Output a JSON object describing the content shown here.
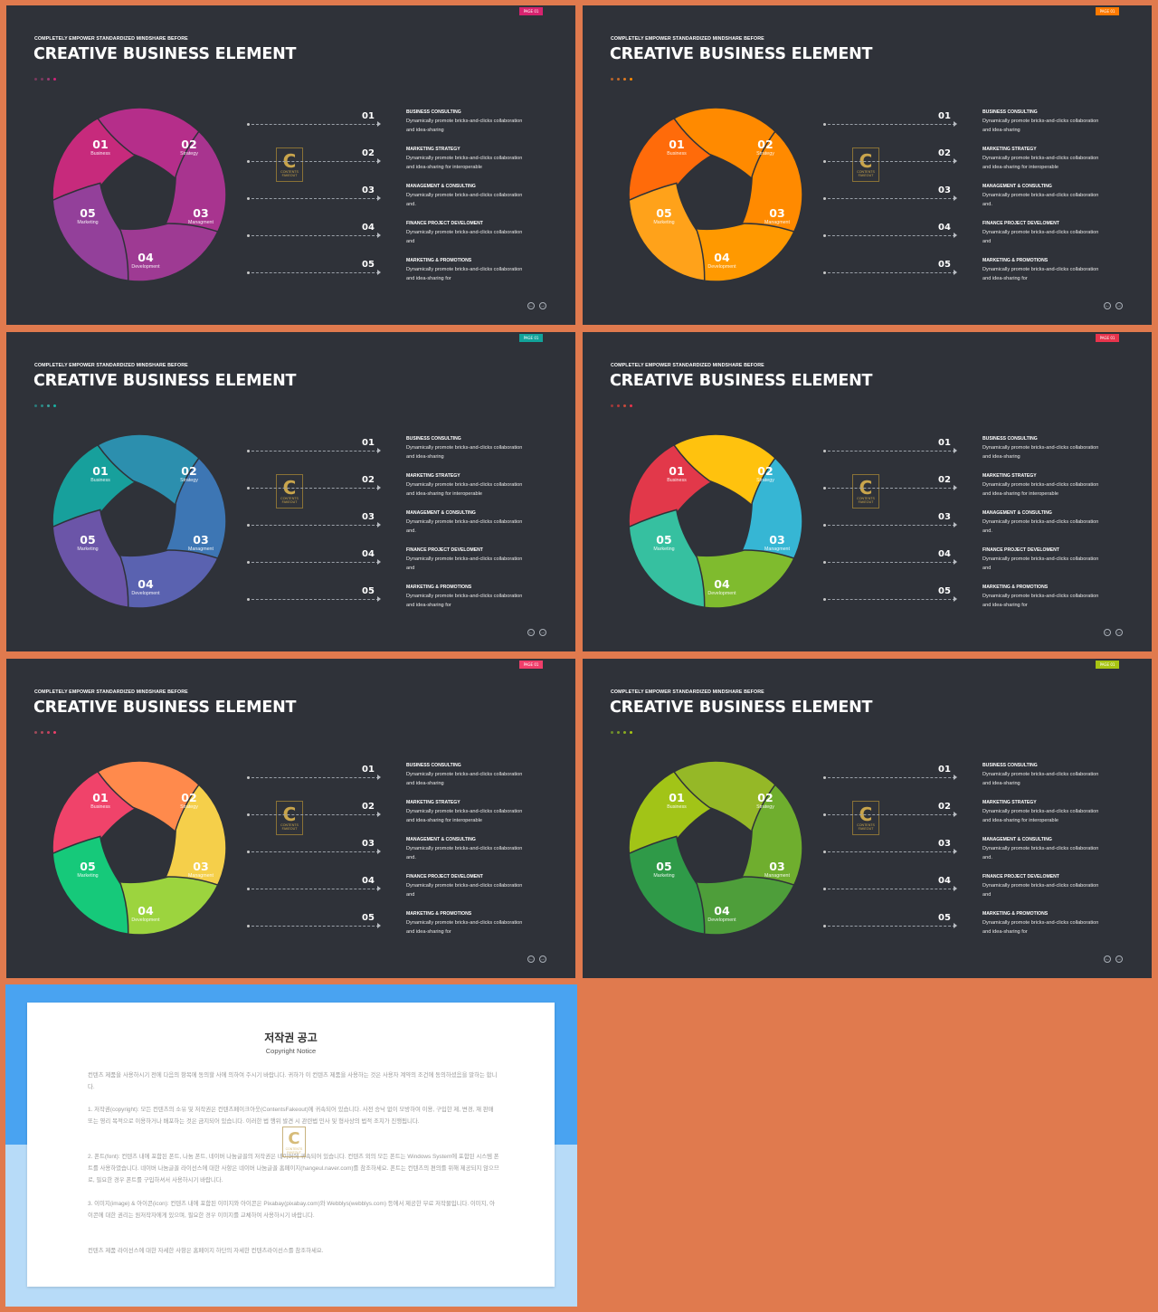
{
  "slide_common": {
    "kicker": "COMPLETELY  EMPOWER  STANDARDIZED  MINDSHARE  BEFORE",
    "title": "CREATIVE BUSINESS ELEMENT",
    "page_tag": "PAGE 01",
    "logo_letter": "C",
    "logo_text": "CONTENTS FAKEOUT",
    "nav_prev": "←",
    "nav_next": "→",
    "wheel": [
      {
        "num": "01",
        "label": "Business"
      },
      {
        "num": "02",
        "label": "Strategy"
      },
      {
        "num": "03",
        "label": "Managment"
      },
      {
        "num": "04",
        "label": "Development"
      },
      {
        "num": "05",
        "label": "Marketing"
      }
    ],
    "items": [
      {
        "num": "01",
        "title": "BUSINESS  CONSULTING",
        "line1": "Dynamically promote bricks-and-clicks collaboration",
        "line2": "and idea-sharing"
      },
      {
        "num": "02",
        "title": "MARKETING  STRATEGY",
        "line1": "Dynamically promote bricks-and-clicks collaboration",
        "line2": "and idea-sharing for interoperable"
      },
      {
        "num": "03",
        "title": "MANAGEMENT  & CONSULTING",
        "line1": "Dynamically promote bricks-and-clicks collaboration",
        "line2": "and."
      },
      {
        "num": "04",
        "title": "FINANCE  PROJECT  DEVELOMENT",
        "line1": "Dynamically promote bricks-and-clicks collaboration",
        "line2": "and"
      },
      {
        "num": "05",
        "title": "MARKETING  & PROMOTIONS",
        "line1": "Dynamically promote bricks-and-clicks collaboration",
        "line2": "and idea-sharing for"
      }
    ]
  },
  "slides": [
    {
      "theme": "magenta",
      "tag_color": "#d7236f",
      "dots": [
        "#7a3a5e",
        "#7a3a5e",
        "#9c3c74",
        "#d2237a"
      ],
      "segments": [
        "#c72a7c",
        "#b52e8a",
        "#a8348f",
        "#9e3a93",
        "#93409a"
      ]
    },
    {
      "theme": "orange",
      "tag_color": "#ff7a00",
      "dots": [
        "#b5612c",
        "#c46a2a",
        "#e07a20",
        "#ff8a00"
      ],
      "segments": [
        "#ff6b0a",
        "#ff8a00",
        "#ff8a00",
        "#ff9900",
        "#ffa21a"
      ]
    },
    {
      "theme": "teal-purple",
      "tag_color": "#12a39a",
      "dots": [
        "#2a7a7a",
        "#2a8a86",
        "#3aa19c",
        "#18b0a2"
      ],
      "segments": [
        "#17a09c",
        "#2c8fae",
        "#3d76b4",
        "#5a62b0",
        "#6b55a8"
      ]
    },
    {
      "theme": "rainbow",
      "tag_color": "#e8344c",
      "dots": [
        "#9e3a3a",
        "#b63a3a",
        "#c84a3a",
        "#e8344c"
      ],
      "segments": [
        "#e2384a",
        "#ffc20e",
        "#36b6d4",
        "#7fbb2e",
        "#36c0a0"
      ]
    },
    {
      "theme": "warm-green",
      "tag_color": "#ef3e6a",
      "dots": [
        "#9e4a5a",
        "#b04a5a",
        "#c84060",
        "#ef3e6a"
      ],
      "segments": [
        "#f0436a",
        "#ff8a4c",
        "#f5cf4a",
        "#9cd43e",
        "#16c97a"
      ]
    },
    {
      "theme": "green",
      "tag_color": "#a8c413",
      "dots": [
        "#6a8a2a",
        "#7a9a2a",
        "#8aac20",
        "#a8c413"
      ],
      "segments": [
        "#a2c417",
        "#95b827",
        "#6fae2e",
        "#4e9e3a",
        "#2f9a48"
      ]
    }
  ],
  "copyright": {
    "title": "저작권 공고",
    "subtitle": "Copyright Notice",
    "logo_letter": "C",
    "logo_text": "CONTENTS FAKEOUT",
    "paragraphs": [
      "컨텐츠 제품을 사용하시기 전에 다음의 항목에 동의할 사에 의하여 주시기 바랍니다. 귀하가 이 컨텐츠 제품을 사용하는 것은 사용자 계약의 조건에 동의하셨음을 말하는 합니다.",
      "1. 저작권(copyright): 모든 컨텐츠의 소유 및 저작권은 컨텐츠페이크아웃(ContentsFakeout)에 귀속되어 있습니다. 사전 승낙 없이 모방하여 이용, 구입한 제, 변경, 재 판매 또는 영리 목적으로 이용하거나 배포하는 것은 금지되어 있습니다. 이러한 법 행위 발견 시 관련법 민사 및 형사상의 법적 조치가 진행됩니다.",
      "2. 폰트(font): 컨텐츠 내에 포함된 폰트, 나눔 폰트, 네이버 나눔글꼴의 저작권은 네이버에 귀속되어 있습니다. 컨텐츠 외의 모든 폰트는 Windows System에 포함된 시스템 폰트를 사용하였습니다. 네이버 나눔글꼴 라이선스에 대한 사항은 네이버 나눔글꼴 홈페이지(hangeul.naver.com)를 참조하세요. 폰트는 컨텐츠의 편의를 위해 제공되지 않으므로, 필요한 경우 폰트를 구입하셔서 사용하시기 바랍니다.",
      "3. 이미지(image) & 아이콘(icon): 컨텐츠 내에 포함된 이미지와 아이콘은 Pixabay(pixabay.com)와 Webblys(webblys.com) 등에서 제공한 무료 저작물입니다. 이미지, 아이콘에 대한 권리는 원저작자에게 있으며, 필요한 경우 이미지를 교체하여 사용하시기 바랍니다.",
      "컨텐츠 제품 라이선스에 대한 자세한 사항은 홈페이지 하단의 자세한 컨텐츠라이선스를 참조하세요."
    ]
  }
}
